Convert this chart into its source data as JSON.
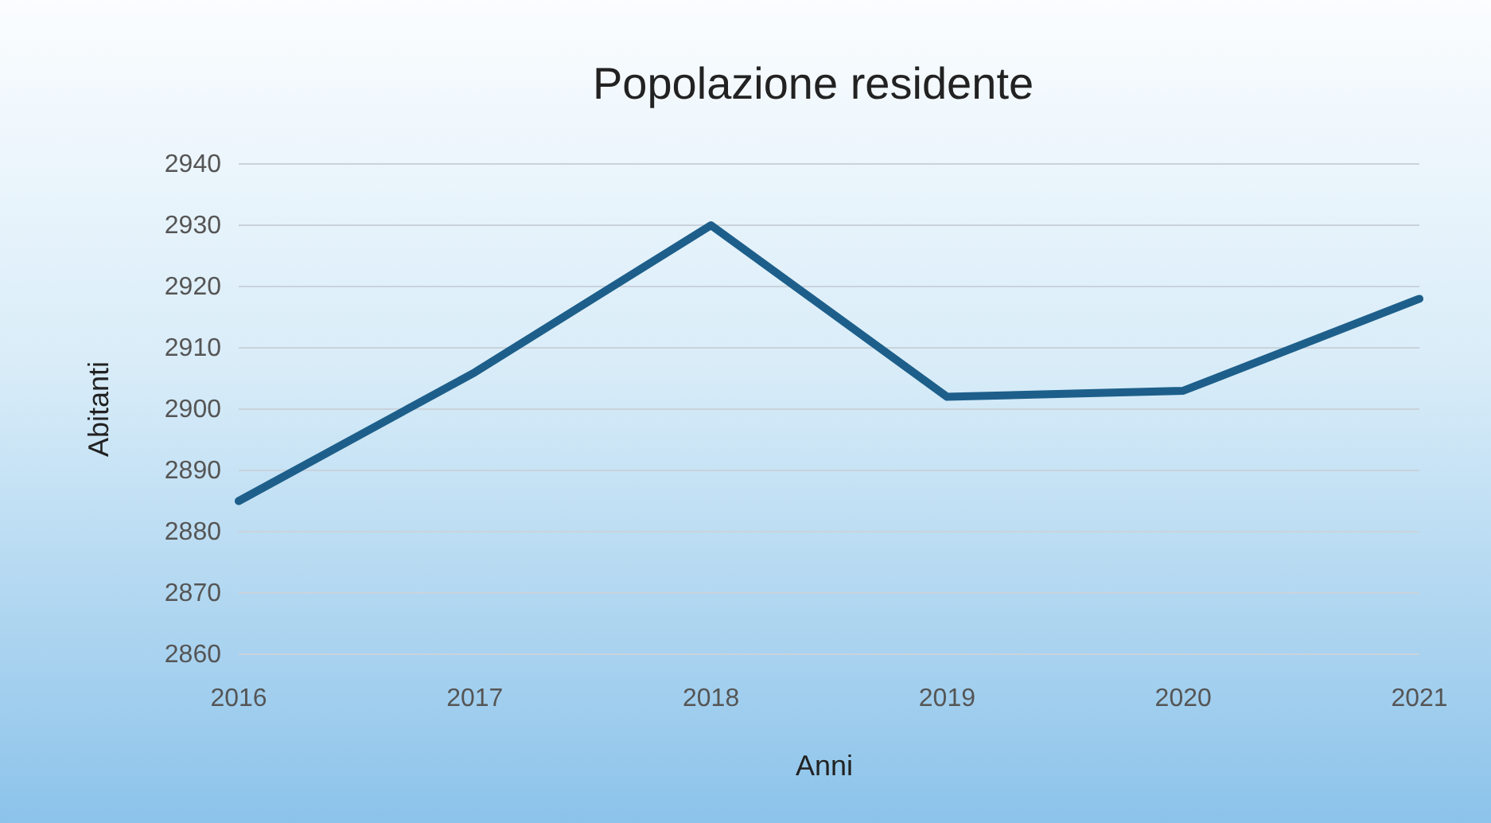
{
  "chart_data": {
    "type": "line",
    "title": "Popolazione residente",
    "xlabel": "Anni",
    "ylabel": "Abitanti",
    "categories": [
      "2016",
      "2017",
      "2018",
      "2019",
      "2020",
      "2021"
    ],
    "series": [
      {
        "color": "#1d5f8a",
        "values": [
          2885,
          2906,
          2930,
          2902,
          2903,
          2918
        ]
      }
    ],
    "ylim": [
      2860,
      2940
    ],
    "yticks": [
      2860,
      2870,
      2880,
      2890,
      2900,
      2910,
      2920,
      2930,
      2940
    ],
    "grid": "y",
    "marker": "none",
    "line_style": "solid"
  }
}
